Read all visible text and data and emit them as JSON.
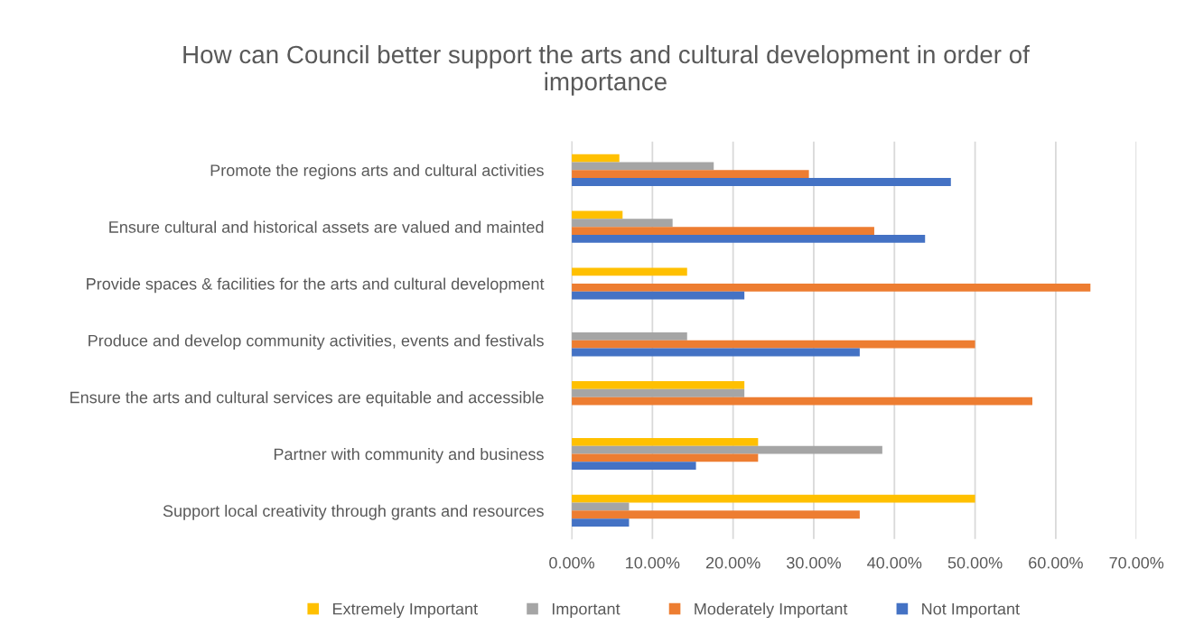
{
  "chart_data": {
    "type": "bar",
    "orientation": "horizontal",
    "title": "How can Council better support the arts and cultural development in order of importance",
    "categories": [
      "Promote the regions arts and cultural activities",
      "Ensure cultural and historical assets are valued and mainted",
      "Provide spaces & facilities for the arts and cultural development",
      "Produce and develop community activities, events and festivals",
      "Ensure the arts and cultural services are equitable and accessible",
      "Partner with community and business",
      "Support local creativity through grants and resources"
    ],
    "series": [
      {
        "name": "Extremely Important",
        "color": "#ffc000",
        "values": [
          5.9,
          6.3,
          14.3,
          null,
          21.4,
          23.1,
          50.0
        ]
      },
      {
        "name": "Important",
        "color": "#a5a5a5",
        "values": [
          17.6,
          12.5,
          null,
          14.3,
          21.4,
          38.5,
          7.1
        ]
      },
      {
        "name": "Moderately Important",
        "color": "#ed7d31",
        "values": [
          29.4,
          37.5,
          64.3,
          50.0,
          57.1,
          23.1,
          35.7
        ]
      },
      {
        "name": "Not Important",
        "color": "#4472c4",
        "values": [
          47.0,
          43.8,
          21.4,
          35.7,
          null,
          15.4,
          7.1
        ]
      }
    ],
    "xlim": [
      0,
      70
    ],
    "xticks": [
      {
        "value": 0,
        "label": "0.00%"
      },
      {
        "value": 10,
        "label": "10.00%"
      },
      {
        "value": 20,
        "label": "20.00%"
      },
      {
        "value": 30,
        "label": "30.00%"
      },
      {
        "value": 40,
        "label": "40.00%"
      },
      {
        "value": 50,
        "label": "50.00%"
      },
      {
        "value": 60,
        "label": "60.00%"
      },
      {
        "value": 70,
        "label": "70.00%"
      }
    ],
    "grid": "x",
    "legend": "bottom"
  }
}
